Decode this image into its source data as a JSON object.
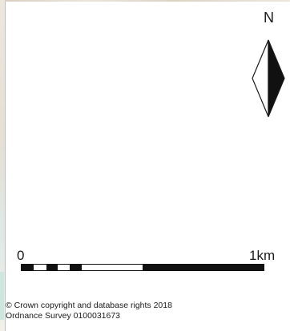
{
  "north_arrow": {
    "letter": "N",
    "icon": "north-arrow-icon"
  },
  "scale_bar": {
    "start_label": "0",
    "end_label": "1km",
    "start_value": 0,
    "end_value": 1,
    "unit": "km",
    "colors": {
      "fill": "#111111",
      "blank": "#ffffff"
    }
  },
  "attribution": {
    "line1": "© Crown copyright and database rights 2018",
    "line2": "Ordnance Survey 0100031673"
  }
}
